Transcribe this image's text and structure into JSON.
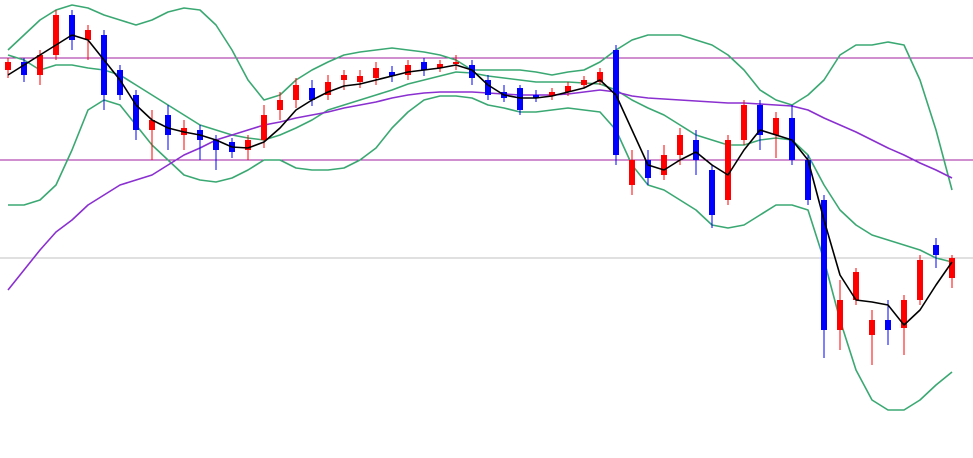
{
  "chart_data": {
    "type": "candlestick",
    "ylim": [
      42,
      500
    ],
    "up_color": "#ff0000",
    "down_color": "#0000ff",
    "open": [
      430,
      438,
      425,
      445,
      485,
      460,
      465,
      430,
      405,
      370,
      385,
      365,
      370,
      360,
      358,
      350,
      360,
      390,
      400,
      412,
      405,
      420,
      418,
      422,
      428,
      425,
      438,
      432,
      436,
      435,
      420,
      408,
      412,
      405,
      404,
      408,
      415,
      418,
      450,
      315,
      340,
      325,
      345,
      360,
      330,
      300,
      360,
      395,
      365,
      382,
      340,
      300,
      170,
      200,
      165,
      180,
      172,
      200,
      255,
      222
    ],
    "close": [
      438,
      425,
      445,
      485,
      460,
      470,
      405,
      405,
      370,
      380,
      365,
      372,
      360,
      350,
      348,
      360,
      385,
      400,
      415,
      400,
      418,
      425,
      424,
      432,
      424,
      435,
      430,
      436,
      438,
      422,
      405,
      402,
      390,
      402,
      408,
      414,
      420,
      428,
      345,
      340,
      322,
      345,
      365,
      340,
      285,
      360,
      395,
      365,
      382,
      340,
      300,
      170,
      200,
      228,
      180,
      170,
      200,
      240,
      245,
      242
    ],
    "high": [
      442,
      442,
      450,
      490,
      490,
      475,
      470,
      435,
      410,
      390,
      395,
      380,
      375,
      365,
      362,
      365,
      395,
      408,
      422,
      420,
      425,
      430,
      430,
      438,
      434,
      440,
      442,
      440,
      445,
      440,
      425,
      415,
      415,
      410,
      412,
      418,
      424,
      432,
      455,
      350,
      350,
      355,
      372,
      370,
      335,
      365,
      400,
      400,
      388,
      395,
      345,
      305,
      220,
      232,
      190,
      200,
      205,
      245,
      262,
      245
    ],
    "low": [
      422,
      418,
      415,
      440,
      450,
      440,
      390,
      400,
      360,
      340,
      350,
      350,
      340,
      330,
      342,
      340,
      352,
      380,
      392,
      394,
      400,
      410,
      412,
      415,
      418,
      420,
      424,
      428,
      430,
      415,
      400,
      398,
      385,
      398,
      400,
      404,
      412,
      415,
      335,
      305,
      315,
      320,
      335,
      325,
      272,
      295,
      355,
      350,
      342,
      335,
      295,
      142,
      150,
      195,
      135,
      155,
      145,
      195,
      232,
      212
    ],
    "lines": [
      {
        "color": "#3aa872",
        "values": [
          295,
          295,
          300,
          315,
          350,
          390,
          400,
          395,
          375,
          355,
          340,
          325,
          320,
          318,
          322,
          330,
          340,
          340,
          332,
          330,
          330,
          332,
          340,
          352,
          372,
          388,
          400,
          404,
          404,
          402,
          395,
          392,
          388,
          388,
          390,
          392,
          390,
          388,
          370,
          335,
          315,
          310,
          300,
          290,
          275,
          272,
          275,
          285,
          295,
          295,
          290,
          240,
          180,
          130,
          100,
          90,
          90,
          100,
          115,
          128
        ]
      },
      {
        "color": "#3aa872",
        "values": [
          450,
          465,
          480,
          490,
          495,
          492,
          485,
          480,
          475,
          480,
          488,
          492,
          490,
          475,
          450,
          420,
          400,
          405,
          420,
          430,
          438,
          445,
          448,
          450,
          452,
          450,
          448,
          445,
          440,
          430,
          430,
          430,
          430,
          428,
          425,
          428,
          430,
          438,
          450,
          460,
          465,
          465,
          465,
          460,
          455,
          445,
          430,
          410,
          400,
          395,
          405,
          420,
          445,
          455,
          455,
          458,
          455,
          420,
          370,
          310
        ]
      },
      {
        "color": "#3aa872",
        "values": [
          445,
          440,
          430,
          435,
          435,
          432,
          430,
          425,
          415,
          405,
          395,
          385,
          375,
          370,
          365,
          362,
          360,
          365,
          372,
          380,
          390,
          395,
          400,
          405,
          410,
          416,
          420,
          424,
          428,
          427,
          424,
          422,
          420,
          418,
          418,
          418,
          417,
          416,
          410,
          400,
          392,
          385,
          375,
          365,
          360,
          355,
          355,
          360,
          362,
          360,
          345,
          315,
          290,
          275,
          265,
          260,
          255,
          250,
          242,
          238
        ]
      },
      {
        "color": "#8a2fd0",
        "values": [
          210,
          230,
          250,
          268,
          280,
          295,
          305,
          315,
          320,
          325,
          335,
          345,
          352,
          360,
          365,
          370,
          375,
          378,
          382,
          385,
          388,
          392,
          395,
          398,
          402,
          405,
          407,
          408,
          408,
          408,
          407,
          406,
          405,
          405,
          405,
          406,
          408,
          410,
          408,
          404,
          402,
          401,
          400,
          399,
          398,
          397,
          397,
          396,
          395,
          394,
          390,
          382,
          375,
          368,
          360,
          352,
          345,
          337,
          330,
          322
        ]
      },
      {
        "color": "#000000",
        "values": [
          425,
          435,
          445,
          455,
          465,
          460,
          440,
          420,
          395,
          380,
          372,
          368,
          365,
          360,
          353,
          352,
          358,
          372,
          390,
          400,
          408,
          414,
          416,
          420,
          424,
          428,
          430,
          432,
          435,
          430,
          415,
          405,
          402,
          402,
          404,
          408,
          412,
          420,
          405,
          370,
          335,
          330,
          340,
          348,
          335,
          325,
          350,
          370,
          365,
          360,
          340,
          280,
          225,
          200,
          198,
          195,
          175,
          190,
          215,
          238
        ]
      }
    ],
    "hlines": [
      {
        "color": "#a020a0",
        "value": 442
      },
      {
        "color": "#a020a0",
        "value": 340
      },
      {
        "color": "#c0c0c0",
        "value": 242
      }
    ]
  }
}
